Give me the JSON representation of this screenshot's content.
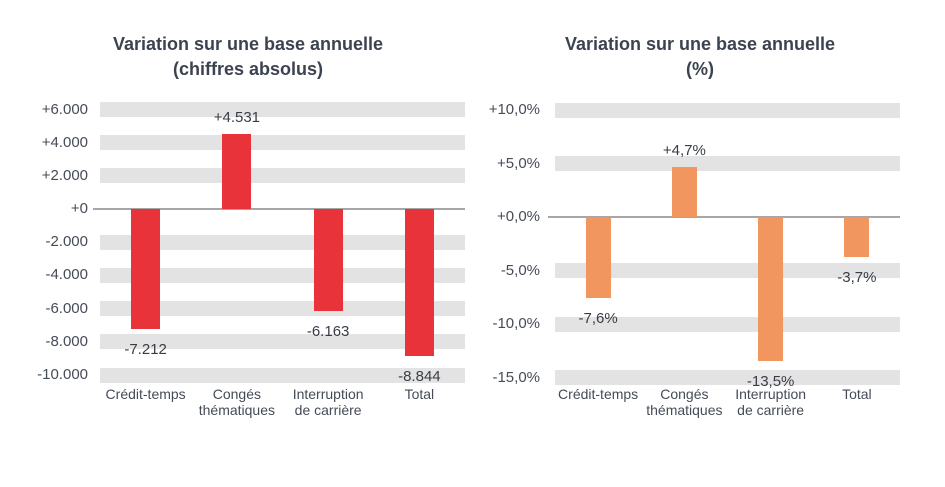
{
  "colors": {
    "background": "#ffffff",
    "band_gray": "#e3e3e3",
    "zero_line_gray": "#a6a6a6",
    "title_text": "#3c4350",
    "tick_text": "#454b57",
    "category_text": "#454b57",
    "value_text": "#383d46",
    "red_bar": "#e9333b",
    "orange_bar": "#f0965e"
  },
  "chart_data": [
    {
      "type": "bar",
      "title": "Variation sur une base annuelle (chiffres absolus)",
      "title_lines": [
        "Variation sur une base annuelle",
        "(chiffres absolus)"
      ],
      "categories": [
        "Crédit-temps",
        "Congés thématiques",
        "Interruption de carrière",
        "Total"
      ],
      "category_lines": [
        [
          "Crédit-temps"
        ],
        [
          "Congés",
          "thématiques"
        ],
        [
          "Interruption",
          "de carrière"
        ],
        [
          "Total"
        ]
      ],
      "values": [
        -7212,
        4531,
        -6163,
        -8844
      ],
      "value_labels": [
        "-7.212",
        "+4.531",
        "-6.163",
        "-8.844"
      ],
      "bar_color": "#e9333b",
      "ylim": [
        -10000,
        6000
      ],
      "y_ticks": [
        {
          "value": 6000,
          "label": "+6.000"
        },
        {
          "value": 4000,
          "label": "+4.000"
        },
        {
          "value": 2000,
          "label": "+2.000"
        },
        {
          "value": 0,
          "label": "+0"
        },
        {
          "value": -2000,
          "label": "-2.000"
        },
        {
          "value": -4000,
          "label": "-4.000"
        },
        {
          "value": -6000,
          "label": "-6.000"
        },
        {
          "value": -8000,
          "label": "-8.000"
        },
        {
          "value": -10000,
          "label": "-10.000"
        }
      ],
      "grid": "horizontal-bands",
      "legend": "none",
      "xlabel": "",
      "ylabel": ""
    },
    {
      "type": "bar",
      "title": "Variation sur une base annuelle (%)",
      "title_lines": [
        "Variation sur une base annuelle",
        "(%)"
      ],
      "categories": [
        "Crédit-temps",
        "Congés thématiques",
        "Interruption de carrière",
        "Total"
      ],
      "category_lines": [
        [
          "Crédit-temps"
        ],
        [
          "Congés",
          "thématiques"
        ],
        [
          "Interruption",
          "de carrière"
        ],
        [
          "Total"
        ]
      ],
      "values": [
        -7.6,
        4.7,
        -13.5,
        -3.7
      ],
      "value_labels": [
        "-7,6%",
        "+4,7%",
        "-13,5%",
        "-3,7%"
      ],
      "bar_color": "#f0965e",
      "ylim": [
        -15,
        10
      ],
      "y_ticks": [
        {
          "value": 10,
          "label": "+10,0%"
        },
        {
          "value": 5,
          "label": "+5,0%"
        },
        {
          "value": 0,
          "label": "+0,0%"
        },
        {
          "value": -5,
          "label": "-5,0%"
        },
        {
          "value": -10,
          "label": "-10,0%"
        },
        {
          "value": -15,
          "label": "-15,0%"
        }
      ],
      "grid": "horizontal-bands",
      "legend": "none",
      "xlabel": "",
      "ylabel": ""
    }
  ]
}
